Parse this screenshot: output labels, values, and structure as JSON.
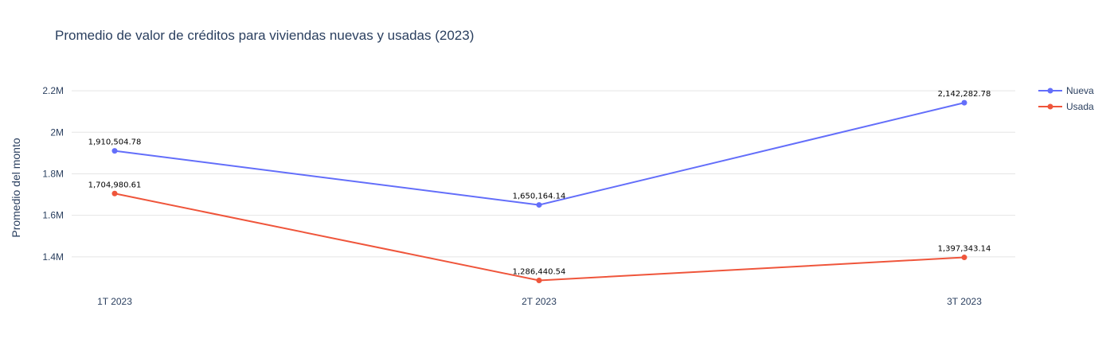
{
  "chart_data": {
    "type": "line",
    "title": "Promedio de valor de créditos para viviendas nuevas y usadas (2023)",
    "xlabel": "",
    "ylabel": "Promedio del monto",
    "categories": [
      "1T 2023",
      "2T 2023",
      "3T 2023"
    ],
    "ylim": [
      1250000,
      2300000
    ],
    "yticks": [
      {
        "value": 1400000,
        "label": "1.4M"
      },
      {
        "value": 1600000,
        "label": "1.6M"
      },
      {
        "value": 1800000,
        "label": "1.8M"
      },
      {
        "value": 2000000,
        "label": "2M"
      },
      {
        "value": 2200000,
        "label": "2.2M"
      }
    ],
    "grid": true,
    "legend_position": "top-right",
    "series": [
      {
        "name": "Nueva",
        "color": "#636efa",
        "values": [
          1910504.78,
          1650164.14,
          2142282.78
        ],
        "labels": [
          "1,910,504.78",
          "1,650,164.14",
          "2,142,282.78"
        ]
      },
      {
        "name": "Usada",
        "color": "#ef553b",
        "values": [
          1704980.61,
          1286440.54,
          1397343.14
        ],
        "labels": [
          "1,704,980.61",
          "1,286,440.54",
          "1,397,343.14"
        ]
      }
    ]
  }
}
